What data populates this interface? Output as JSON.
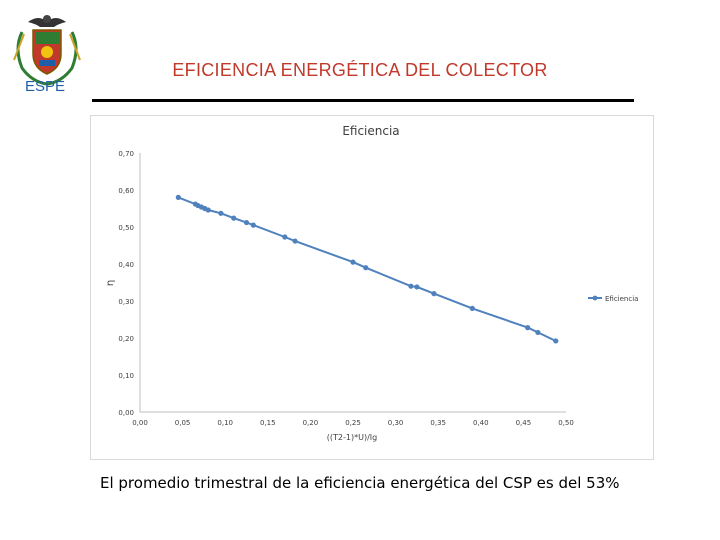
{
  "header": {
    "logo_text": "ESPE",
    "title": "EFICIENCIA ENERGÉTICA DEL COLECTOR"
  },
  "colors": {
    "title": "#c0392b",
    "logo_text": "#1f5fa8",
    "series": "#4f81bd",
    "gridline": "#d9d9d9"
  },
  "chart_data": {
    "type": "line",
    "title": "Eficiencia",
    "xlabel": "((T2-1)*U)/Ig",
    "ylabel": "η",
    "xlim": [
      0,
      0.5
    ],
    "ylim": [
      0,
      0.7
    ],
    "x_ticks": [
      "0,00",
      "0,05",
      "0,10",
      "0,15",
      "0,20",
      "0,25",
      "0,30",
      "0,35",
      "0,40",
      "0,45",
      "0,50"
    ],
    "y_ticks": [
      "0,00",
      "0,10",
      "0,20",
      "0,30",
      "0,40",
      "0,50",
      "0,60",
      "0,70"
    ],
    "grid": false,
    "legend_position": "right",
    "series": [
      {
        "name": "Eficiencia",
        "x": [
          0.045,
          0.065,
          0.068,
          0.072,
          0.076,
          0.08,
          0.095,
          0.11,
          0.125,
          0.133,
          0.17,
          0.182,
          0.25,
          0.265,
          0.318,
          0.325,
          0.345,
          0.39,
          0.455,
          0.467,
          0.488
        ],
        "y": [
          0.58,
          0.562,
          0.558,
          0.554,
          0.55,
          0.546,
          0.537,
          0.524,
          0.512,
          0.505,
          0.473,
          0.462,
          0.405,
          0.39,
          0.34,
          0.338,
          0.32,
          0.28,
          0.228,
          0.215,
          0.192
        ]
      }
    ]
  },
  "caption": "El promedio trimestral de la eficiencia energética del CSP es del 53%"
}
